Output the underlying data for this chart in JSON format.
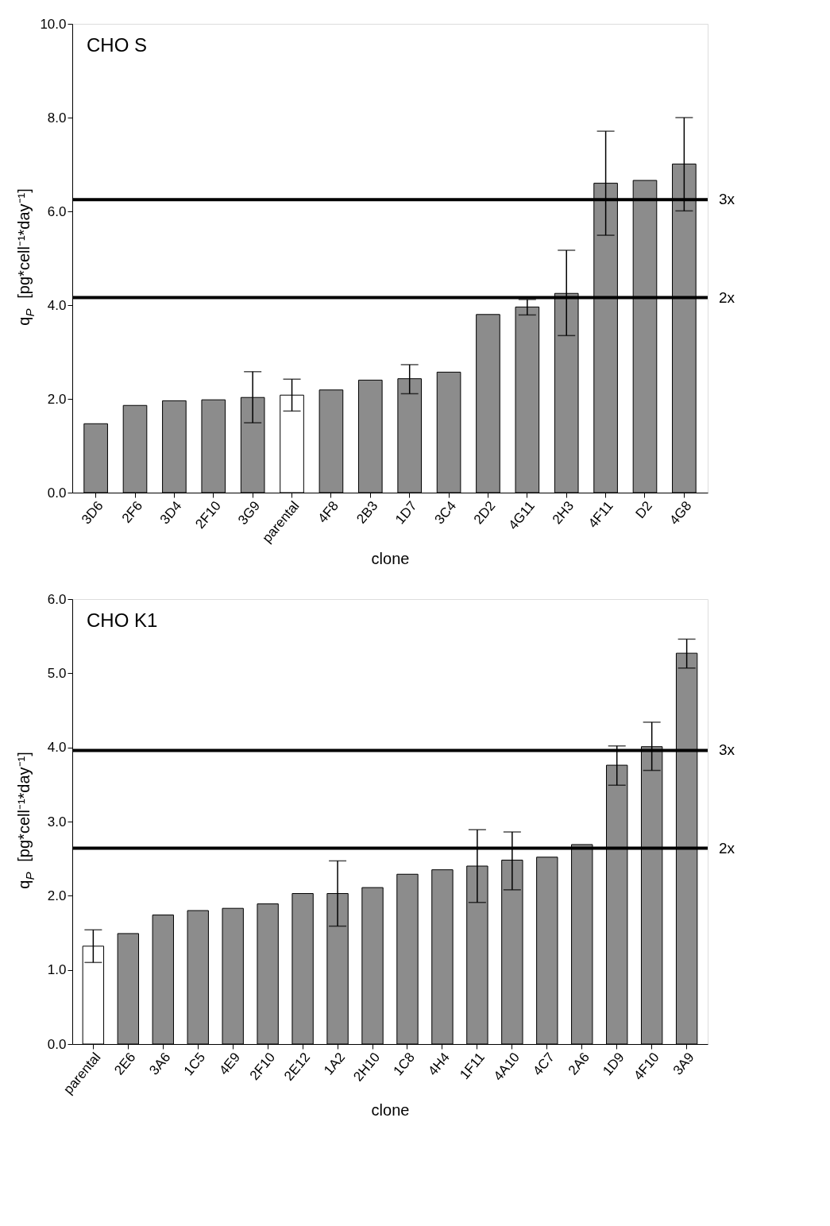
{
  "chart_data": [
    {
      "type": "bar",
      "title": "CHO S",
      "xlabel": "clone",
      "ylabel": "q$_{P}$ [pg*cell⁻¹*day⁻¹]",
      "categories": [
        "3D6",
        "2F6",
        "3D4",
        "2F10",
        "3G9",
        "parental",
        "4F8",
        "2B3",
        "1D7",
        "3C4",
        "2D2",
        "4G11",
        "2H3",
        "4F11",
        "D2",
        "4G8"
      ],
      "values": [
        1.47,
        1.86,
        1.96,
        1.98,
        2.03,
        2.08,
        2.19,
        2.4,
        2.43,
        2.57,
        3.8,
        3.96,
        4.25,
        6.6,
        6.66,
        7.01
      ],
      "errors": [
        null,
        null,
        null,
        null,
        [
          1.49,
          2.58
        ],
        [
          1.74,
          2.42
        ],
        null,
        null,
        [
          2.11,
          2.73
        ],
        null,
        null,
        [
          3.79,
          4.12
        ],
        [
          3.35,
          5.17
        ],
        [
          5.49,
          7.71
        ],
        null,
        [
          6.01,
          8.0
        ]
      ],
      "colors": [
        "#8c8c8c",
        "#8c8c8c",
        "#8c8c8c",
        "#8c8c8c",
        "#8c8c8c",
        "#ffffff",
        "#8c8c8c",
        "#8c8c8c",
        "#8c8c8c",
        "#8c8c8c",
        "#8c8c8c",
        "#8c8c8c",
        "#8c8c8c",
        "#8c8c8c",
        "#8c8c8c",
        "#8c8c8c"
      ],
      "ylim": [
        0,
        10
      ],
      "yticks": [
        {
          "value": 0,
          "label": "0.0"
        },
        {
          "value": 2,
          "label": "2.0"
        },
        {
          "value": 4,
          "label": "4.0"
        },
        {
          "value": 6,
          "label": "6.0"
        },
        {
          "value": 8,
          "label": "8.0"
        },
        {
          "value": 10,
          "label": "10.0"
        }
      ],
      "ref_lines": [
        {
          "axis": "y",
          "value": 6.25,
          "label": "3x",
          "color": "#000000"
        },
        {
          "axis": "y",
          "value": 4.16,
          "label": "2x",
          "color": "#000000"
        }
      ],
      "grid": false
    },
    {
      "type": "bar",
      "title": "CHO K1",
      "xlabel": "clone",
      "ylabel": "q$_{P}$ [pg*cell⁻¹*day⁻¹]",
      "categories": [
        "parental",
        "2E6",
        "3A6",
        "1C5",
        "4E9",
        "2F10",
        "2E12",
        "1A2",
        "2H10",
        "1C8",
        "4H4",
        "1F11",
        "4A10",
        "4C7",
        "2A6",
        "1D9",
        "4F10",
        "3A9"
      ],
      "values": [
        1.32,
        1.49,
        1.74,
        1.8,
        1.83,
        1.89,
        2.03,
        2.03,
        2.11,
        2.29,
        2.35,
        2.4,
        2.48,
        2.52,
        2.69,
        3.76,
        4.01,
        5.27
      ],
      "errors": [
        [
          1.1,
          1.54
        ],
        null,
        null,
        null,
        null,
        null,
        null,
        [
          1.59,
          2.47
        ],
        null,
        null,
        null,
        [
          1.91,
          2.89
        ],
        [
          2.08,
          2.86
        ],
        null,
        null,
        [
          3.49,
          4.02
        ],
        [
          3.69,
          4.34
        ],
        [
          5.07,
          5.46
        ]
      ],
      "colors": [
        "#ffffff",
        "#8c8c8c",
        "#8c8c8c",
        "#8c8c8c",
        "#8c8c8c",
        "#8c8c8c",
        "#8c8c8c",
        "#8c8c8c",
        "#8c8c8c",
        "#8c8c8c",
        "#8c8c8c",
        "#8c8c8c",
        "#8c8c8c",
        "#8c8c8c",
        "#8c8c8c",
        "#8c8c8c",
        "#8c8c8c",
        "#8c8c8c"
      ],
      "ylim": [
        0,
        6
      ],
      "yticks": [
        {
          "value": 0,
          "label": "0.0"
        },
        {
          "value": 1,
          "label": "1.0"
        },
        {
          "value": 2,
          "label": "2.0"
        },
        {
          "value": 3,
          "label": "3.0"
        },
        {
          "value": 4,
          "label": "4.0"
        },
        {
          "value": 5,
          "label": "5.0"
        },
        {
          "value": 6,
          "label": "6.0"
        }
      ],
      "ref_lines": [
        {
          "axis": "y",
          "value": 3.96,
          "label": "3x",
          "color": "#000000"
        },
        {
          "axis": "y",
          "value": 2.64,
          "label": "2x",
          "color": "#000000"
        }
      ],
      "grid": false
    }
  ]
}
